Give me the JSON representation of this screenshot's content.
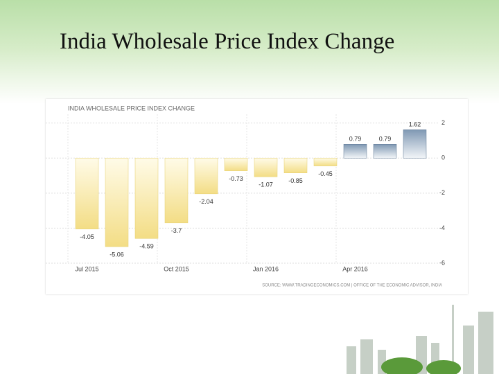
{
  "slide_title": "India Wholesale Price Index Change",
  "chart_data": {
    "type": "bar",
    "title": "INDIA WHOLESALE PRICE INDEX CHANGE",
    "categories": [
      "Jul 2015",
      null,
      null,
      "Oct 2015",
      null,
      null,
      "Jan 2016",
      null,
      null,
      "Apr 2016",
      null,
      null
    ],
    "values": [
      -4.05,
      -5.06,
      -4.59,
      -3.7,
      -2.04,
      -0.73,
      -1.07,
      -0.85,
      -0.45,
      0.79,
      0.79,
      1.62
    ],
    "color_negative": "#f3dd85",
    "color_positive": "#7f98b3",
    "ylim": [
      -6,
      2.5
    ],
    "yticks": [
      2,
      0,
      -2,
      -4,
      -6
    ],
    "grid": true,
    "source": "SOURCE: WWW.TRADINGECONOMICS.COM | OFFICE OF THE ECONOMIC ADVISOR, INDIA"
  }
}
